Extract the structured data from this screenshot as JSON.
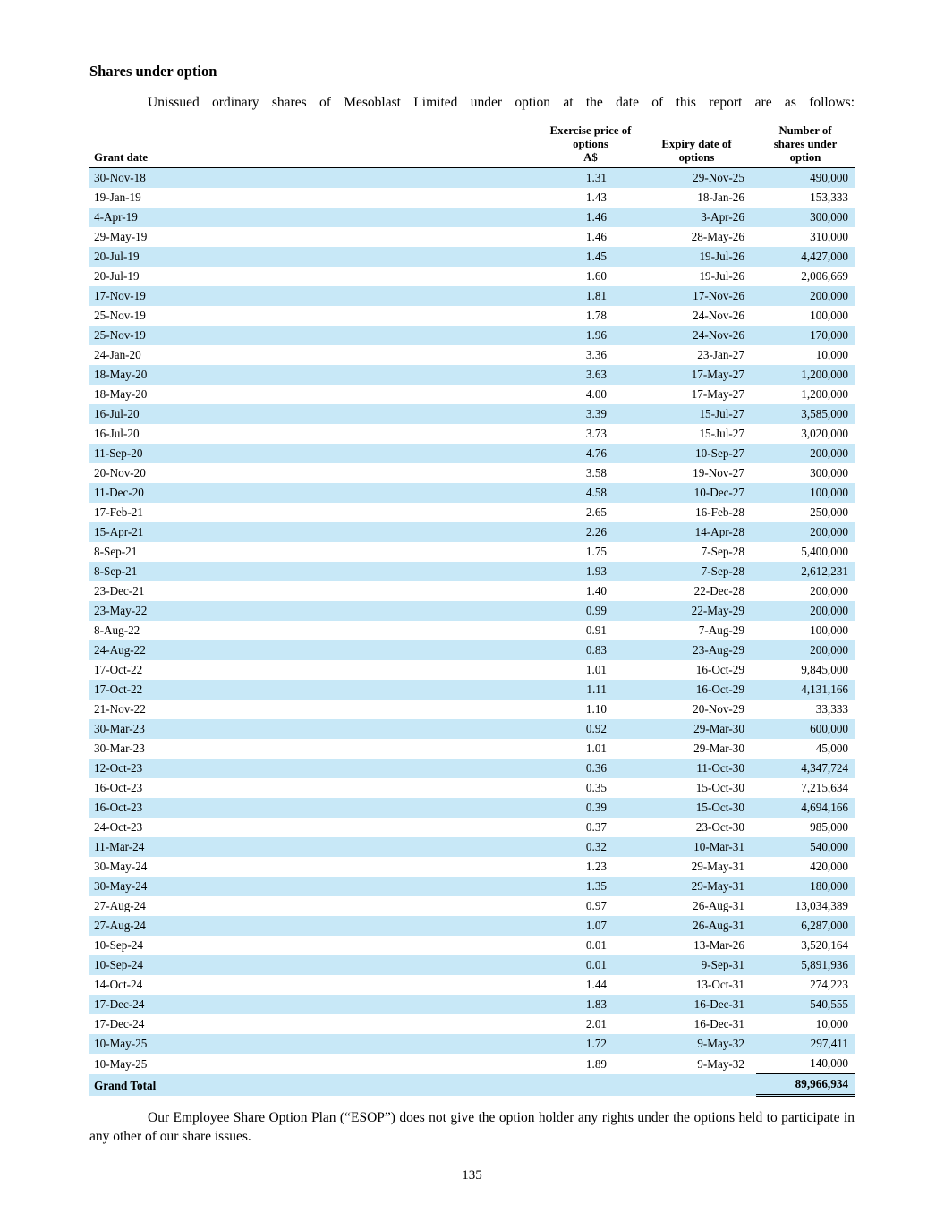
{
  "page": {
    "heading": "Shares under option",
    "intro": "Unissued ordinary shares of Mesoblast Limited under option at the date of this report are as follows:",
    "footer_para": "Our Employee Share Option Plan (“ESOP”) does not give the option holder any rights under the options held to participate in any other of our share issues.",
    "page_number": "135"
  },
  "colors": {
    "stripe": "#c8e8f7",
    "rule": "#000000"
  },
  "table": {
    "header": {
      "grant_date": "Grant date",
      "exercise_price_lines": [
        "Exercise price of",
        "options",
        "A$"
      ],
      "expiry_lines": [
        "Expiry date of",
        "options"
      ],
      "number_lines": [
        "Number of",
        "shares under",
        "option"
      ]
    },
    "rows": [
      [
        "30-Nov-18",
        "1.31",
        "29-Nov-25",
        "490,000"
      ],
      [
        "19-Jan-19",
        "1.43",
        "18-Jan-26",
        "153,333"
      ],
      [
        "4-Apr-19",
        "1.46",
        "3-Apr-26",
        "300,000"
      ],
      [
        "29-May-19",
        "1.46",
        "28-May-26",
        "310,000"
      ],
      [
        "20-Jul-19",
        "1.45",
        "19-Jul-26",
        "4,427,000"
      ],
      [
        "20-Jul-19",
        "1.60",
        "19-Jul-26",
        "2,006,669"
      ],
      [
        "17-Nov-19",
        "1.81",
        "17-Nov-26",
        "200,000"
      ],
      [
        "25-Nov-19",
        "1.78",
        "24-Nov-26",
        "100,000"
      ],
      [
        "25-Nov-19",
        "1.96",
        "24-Nov-26",
        "170,000"
      ],
      [
        "24-Jan-20",
        "3.36",
        "23-Jan-27",
        "10,000"
      ],
      [
        "18-May-20",
        "3.63",
        "17-May-27",
        "1,200,000"
      ],
      [
        "18-May-20",
        "4.00",
        "17-May-27",
        "1,200,000"
      ],
      [
        "16-Jul-20",
        "3.39",
        "15-Jul-27",
        "3,585,000"
      ],
      [
        "16-Jul-20",
        "3.73",
        "15-Jul-27",
        "3,020,000"
      ],
      [
        "11-Sep-20",
        "4.76",
        "10-Sep-27",
        "200,000"
      ],
      [
        "20-Nov-20",
        "3.58",
        "19-Nov-27",
        "300,000"
      ],
      [
        "11-Dec-20",
        "4.58",
        "10-Dec-27",
        "100,000"
      ],
      [
        "17-Feb-21",
        "2.65",
        "16-Feb-28",
        "250,000"
      ],
      [
        "15-Apr-21",
        "2.26",
        "14-Apr-28",
        "200,000"
      ],
      [
        "8-Sep-21",
        "1.75",
        "7-Sep-28",
        "5,400,000"
      ],
      [
        "8-Sep-21",
        "1.93",
        "7-Sep-28",
        "2,612,231"
      ],
      [
        "23-Dec-21",
        "1.40",
        "22-Dec-28",
        "200,000"
      ],
      [
        "23-May-22",
        "0.99",
        "22-May-29",
        "200,000"
      ],
      [
        "8-Aug-22",
        "0.91",
        "7-Aug-29",
        "100,000"
      ],
      [
        "24-Aug-22",
        "0.83",
        "23-Aug-29",
        "200,000"
      ],
      [
        "17-Oct-22",
        "1.01",
        "16-Oct-29",
        "9,845,000"
      ],
      [
        "17-Oct-22",
        "1.11",
        "16-Oct-29",
        "4,131,166"
      ],
      [
        "21-Nov-22",
        "1.10",
        "20-Nov-29",
        "33,333"
      ],
      [
        "30-Mar-23",
        "0.92",
        "29-Mar-30",
        "600,000"
      ],
      [
        "30-Mar-23",
        "1.01",
        "29-Mar-30",
        "45,000"
      ],
      [
        "12-Oct-23",
        "0.36",
        "11-Oct-30",
        "4,347,724"
      ],
      [
        "16-Oct-23",
        "0.35",
        "15-Oct-30",
        "7,215,634"
      ],
      [
        "16-Oct-23",
        "0.39",
        "15-Oct-30",
        "4,694,166"
      ],
      [
        "24-Oct-23",
        "0.37",
        "23-Oct-30",
        "985,000"
      ],
      [
        "11-Mar-24",
        "0.32",
        "10-Mar-31",
        "540,000"
      ],
      [
        "30-May-24",
        "1.23",
        "29-May-31",
        "420,000"
      ],
      [
        "30-May-24",
        "1.35",
        "29-May-31",
        "180,000"
      ],
      [
        "27-Aug-24",
        "0.97",
        "26-Aug-31",
        "13,034,389"
      ],
      [
        "27-Aug-24",
        "1.07",
        "26-Aug-31",
        "6,287,000"
      ],
      [
        "10-Sep-24",
        "0.01",
        "13-Mar-26",
        "3,520,164"
      ],
      [
        "10-Sep-24",
        "0.01",
        "9-Sep-31",
        "5,891,936"
      ],
      [
        "14-Oct-24",
        "1.44",
        "13-Oct-31",
        "274,223"
      ],
      [
        "17-Dec-24",
        "1.83",
        "16-Dec-31",
        "540,555"
      ],
      [
        "17-Dec-24",
        "2.01",
        "16-Dec-31",
        "10,000"
      ],
      [
        "10-May-25",
        "1.72",
        "9-May-32",
        "297,411"
      ],
      [
        "10-May-25",
        "1.89",
        "9-May-32",
        "140,000"
      ]
    ],
    "grand_total_label": "Grand Total",
    "grand_total_value": "89,966,934"
  }
}
